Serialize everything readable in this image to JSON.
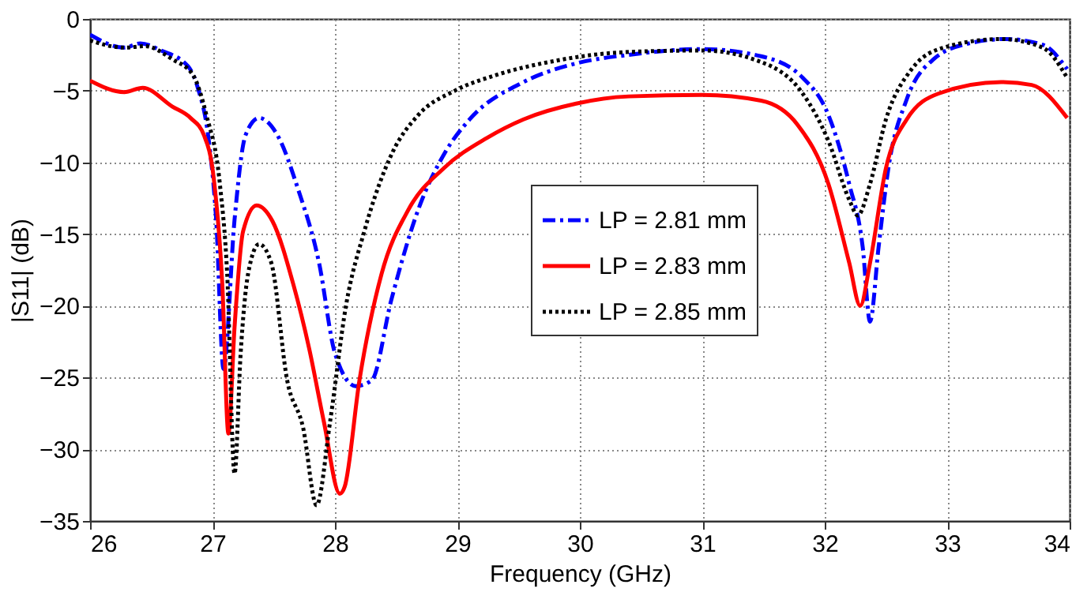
{
  "chart_data": {
    "type": "line",
    "xlabel": "Frequency (GHz)",
    "ylabel": "|S11| (dB)",
    "xlim": [
      26,
      34
    ],
    "xticks": [
      26,
      27,
      28,
      29,
      30,
      31,
      32,
      33,
      34
    ],
    "ylim": [
      -35,
      0
    ],
    "yticks": [
      -35,
      -30,
      -25,
      -20,
      -15,
      -10,
      -5,
      0
    ],
    "grid": true,
    "legend": "center",
    "series": [
      {
        "name": "LP = 2.81 mm",
        "color": "#0000ff",
        "line_style": "dashed",
        "x": [
          26,
          26.28,
          26.41,
          26.58,
          26.8,
          26.88,
          26.97,
          27.03,
          27.09,
          27.18,
          27.27,
          27.38,
          27.53,
          27.7,
          27.87,
          28.0,
          28.17,
          28.3,
          28.46,
          28.68,
          28.9,
          29.1,
          29.54,
          29.97,
          30.4,
          31.0,
          31.48,
          31.82,
          32.03,
          32.2,
          32.31,
          32.37,
          32.44,
          32.52,
          32.67,
          32.89,
          33.18,
          33.48,
          33.78,
          33.98
        ],
        "values": [
          -1.1,
          -2.0,
          -1.7,
          -2.2,
          -3.3,
          -4.8,
          -8.5,
          -14,
          -24.4,
          -14,
          -8.1,
          -6.9,
          -8.1,
          -11.9,
          -17,
          -23.3,
          -25.6,
          -25.2,
          -19.6,
          -13.3,
          -9.3,
          -7.0,
          -4.4,
          -3.1,
          -2.5,
          -2.1,
          -2.6,
          -4.1,
          -6.7,
          -11.5,
          -15.9,
          -21.1,
          -15.9,
          -10.4,
          -5.6,
          -2.8,
          -1.7,
          -1.4,
          -1.8,
          -3.5
        ]
      },
      {
        "name": "LP = 2.83 mm",
        "color": "#ff0000",
        "line_style": "solid",
        "x": [
          26,
          26.28,
          26.43,
          26.67,
          26.82,
          26.93,
          27.01,
          27.08,
          27.13,
          27.18,
          27.25,
          27.36,
          27.49,
          27.66,
          27.79,
          27.91,
          28.04,
          28.08,
          28.2,
          28.38,
          28.6,
          28.89,
          29.24,
          29.54,
          29.97,
          30.4,
          31.0,
          31.48,
          31.78,
          32.03,
          32.2,
          32.29,
          32.37,
          32.5,
          32.67,
          32.93,
          33.44,
          33.69,
          33.98
        ],
        "values": [
          -4.3,
          -5.1,
          -4.8,
          -6.1,
          -6.9,
          -8.1,
          -11.1,
          -18.5,
          -28.9,
          -21.5,
          -14.8,
          -13.0,
          -14.1,
          -18.5,
          -23,
          -28.1,
          -33.1,
          -32.6,
          -25.2,
          -17.8,
          -13.3,
          -10.4,
          -8.3,
          -7.0,
          -5.9,
          -5.4,
          -5.3,
          -5.7,
          -7.4,
          -11.5,
          -17,
          -20,
          -17,
          -10.4,
          -7,
          -5.2,
          -4.4,
          -4.6,
          -6.9
        ]
      },
      {
        "name": "LP = 2.85 mm",
        "color": "#000000",
        "line_style": "dotted",
        "x": [
          26,
          26.28,
          26.45,
          26.67,
          26.84,
          26.95,
          27.06,
          27.12,
          27.18,
          27.23,
          27.29,
          27.38,
          27.48,
          27.61,
          27.74,
          27.85,
          27.96,
          28.09,
          28.24,
          28.47,
          28.68,
          28.98,
          29.32,
          29.75,
          30.4,
          31.0,
          31.48,
          31.82,
          32.03,
          32.2,
          32.27,
          32.37,
          32.5,
          32.71,
          32.97,
          33.44,
          33.78,
          33.98
        ],
        "values": [
          -1.5,
          -2.0,
          -1.9,
          -2.8,
          -3.9,
          -6.7,
          -11.5,
          -17.8,
          -31.7,
          -23.3,
          -17.8,
          -15.7,
          -17,
          -25.2,
          -28.5,
          -33.9,
          -28.1,
          -20,
          -14.8,
          -9.3,
          -6.7,
          -5.0,
          -3.9,
          -3.0,
          -2.3,
          -2.2,
          -3.0,
          -5.2,
          -8.5,
          -12.6,
          -13.7,
          -11.5,
          -7.0,
          -3.5,
          -2.0,
          -1.4,
          -2.0,
          -4.1
        ]
      }
    ]
  }
}
